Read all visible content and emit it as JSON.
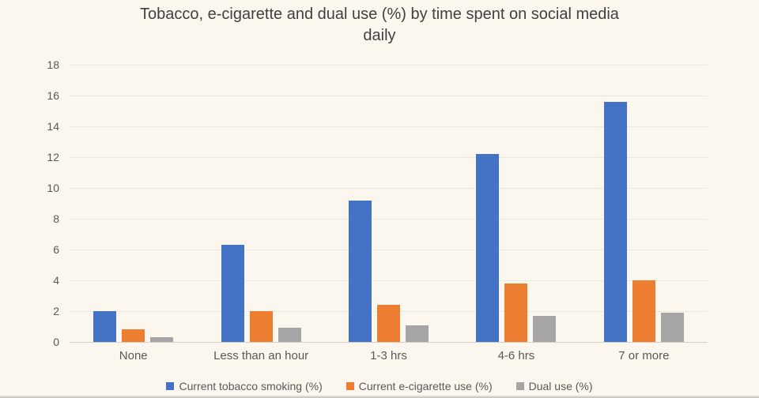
{
  "page": {
    "background": "#FBF7EE"
  },
  "chart_data": {
    "type": "bar",
    "title": "Tobacco, e-cigarette and dual use (%) by time spent on social media daily",
    "categories": [
      "None",
      "Less than an hour",
      "1-3 hrs",
      "4-6 hrs",
      "7 or more"
    ],
    "series": [
      {
        "name": "Current tobacco smoking (%)",
        "color": "#4472C4",
        "values": [
          2.0,
          6.3,
          9.2,
          12.2,
          15.6
        ]
      },
      {
        "name": "Current e-cigarette use (%)",
        "color": "#ED7D31",
        "values": [
          0.8,
          2.0,
          2.4,
          3.8,
          4.0
        ]
      },
      {
        "name": "Dual use (%)",
        "color": "#A5A5A5",
        "values": [
          0.3,
          0.9,
          1.1,
          1.7,
          1.9
        ]
      }
    ],
    "xlabel": "",
    "ylabel": "",
    "ylim": [
      0,
      18
    ],
    "ytick_step": 2,
    "yticks": [
      0,
      2,
      4,
      6,
      8,
      10,
      12,
      14,
      16,
      18
    ],
    "grid": true,
    "legend_position": "bottom",
    "colors": {
      "gridline": "#ECE8DD",
      "axis_line": "#D3CFC6",
      "tick_text": "#595959",
      "title_text": "#404040"
    }
  }
}
